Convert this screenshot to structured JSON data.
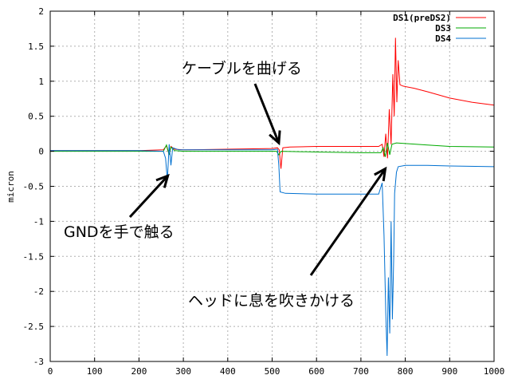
{
  "chart_data": {
    "type": "line",
    "title": "",
    "xlabel": "",
    "ylabel": "micron",
    "xlim": [
      0,
      1000
    ],
    "ylim": [
      -3,
      2
    ],
    "x_ticks": [
      "0",
      "100",
      "200",
      "300",
      "400",
      "500",
      "600",
      "700",
      "800",
      "900",
      "1000"
    ],
    "y_ticks": [
      "2",
      "1.5",
      "1",
      "0.5",
      "0",
      "-0.5",
      "-1",
      "-1.5",
      "-2",
      "-2.5",
      "-3"
    ],
    "grid": true,
    "legend_position": "top-right",
    "series": [
      {
        "name": "DS1(preDS2)",
        "color": "#ff0000",
        "points": [
          [
            0,
            0.01
          ],
          [
            100,
            0.01
          ],
          [
            200,
            0.01
          ],
          [
            255,
            0.02
          ],
          [
            262,
            0.08
          ],
          [
            268,
            -0.05
          ],
          [
            272,
            0.07
          ],
          [
            280,
            0.03
          ],
          [
            300,
            0.02
          ],
          [
            400,
            0.03
          ],
          [
            500,
            0.04
          ],
          [
            512,
            0.05
          ],
          [
            516,
            0.02
          ],
          [
            520,
            -0.25
          ],
          [
            524,
            0.05
          ],
          [
            540,
            0.06
          ],
          [
            600,
            0.07
          ],
          [
            700,
            0.07
          ],
          [
            740,
            0.07
          ],
          [
            748,
            0.1
          ],
          [
            752,
            -0.08
          ],
          [
            756,
            0.25
          ],
          [
            760,
            -0.1
          ],
          [
            764,
            0.6
          ],
          [
            768,
            0.1
          ],
          [
            772,
            1.1
          ],
          [
            775,
            0.5
          ],
          [
            778,
            1.62
          ],
          [
            781,
            0.7
          ],
          [
            784,
            1.3
          ],
          [
            788,
            0.95
          ],
          [
            795,
            0.93
          ],
          [
            820,
            0.9
          ],
          [
            850,
            0.85
          ],
          [
            900,
            0.76
          ],
          [
            950,
            0.7
          ],
          [
            1000,
            0.66
          ]
        ]
      },
      {
        "name": "DS3",
        "color": "#00aa00",
        "points": [
          [
            0,
            0.0
          ],
          [
            100,
            0.0
          ],
          [
            200,
            0.0
          ],
          [
            255,
            0.0
          ],
          [
            262,
            0.09
          ],
          [
            268,
            -0.05
          ],
          [
            272,
            0.06
          ],
          [
            280,
            0.01
          ],
          [
            300,
            0.0
          ],
          [
            400,
            0.0
          ],
          [
            500,
            0.0
          ],
          [
            510,
            0.0
          ],
          [
            515,
            -0.05
          ],
          [
            520,
            0.0
          ],
          [
            600,
            -0.01
          ],
          [
            700,
            -0.02
          ],
          [
            745,
            -0.02
          ],
          [
            750,
            0.05
          ],
          [
            755,
            -0.08
          ],
          [
            760,
            0.12
          ],
          [
            765,
            -0.05
          ],
          [
            770,
            0.1
          ],
          [
            780,
            0.12
          ],
          [
            800,
            0.11
          ],
          [
            850,
            0.09
          ],
          [
            900,
            0.07
          ],
          [
            1000,
            0.06
          ]
        ]
      },
      {
        "name": "DS4",
        "color": "#0070d0",
        "points": [
          [
            0,
            0.01
          ],
          [
            100,
            0.01
          ],
          [
            200,
            0.01
          ],
          [
            255,
            0.0
          ],
          [
            260,
            -0.1
          ],
          [
            264,
            -0.42
          ],
          [
            268,
            0.1
          ],
          [
            272,
            -0.2
          ],
          [
            276,
            0.05
          ],
          [
            290,
            0.02
          ],
          [
            400,
            0.02
          ],
          [
            500,
            0.02
          ],
          [
            512,
            0.03
          ],
          [
            515,
            -0.2
          ],
          [
            518,
            -0.58
          ],
          [
            530,
            -0.6
          ],
          [
            600,
            -0.61
          ],
          [
            700,
            -0.61
          ],
          [
            740,
            -0.61
          ],
          [
            748,
            -0.45
          ],
          [
            752,
            -1.2
          ],
          [
            756,
            -2.3
          ],
          [
            759,
            -2.92
          ],
          [
            762,
            -1.8
          ],
          [
            765,
            -2.6
          ],
          [
            768,
            -1.0
          ],
          [
            771,
            -2.4
          ],
          [
            774,
            -1.5
          ],
          [
            776,
            -0.6
          ],
          [
            780,
            -0.3
          ],
          [
            784,
            -0.22
          ],
          [
            800,
            -0.2
          ],
          [
            850,
            -0.2
          ],
          [
            900,
            -0.21
          ],
          [
            1000,
            -0.22
          ]
        ]
      }
    ],
    "annotations": [
      {
        "text": "ケーブルを曲げる",
        "target": [
          515,
          0.12
        ]
      },
      {
        "text": "GNDを手で触る",
        "target": [
          265,
          -0.35
        ]
      },
      {
        "text": "ヘッドに息を吹きかける",
        "target": [
          755,
          -0.25
        ]
      }
    ]
  }
}
